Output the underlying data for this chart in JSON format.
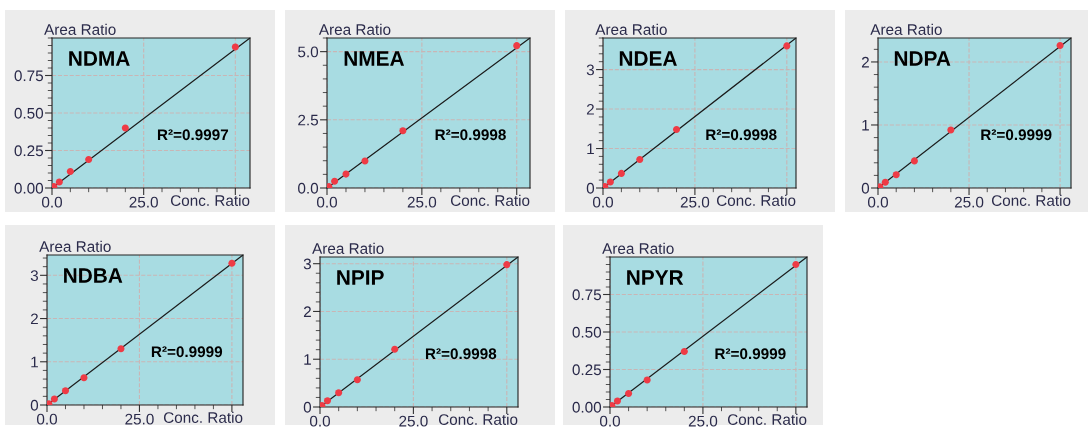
{
  "chart_data": [
    {
      "type": "scatter",
      "title": "NDMA",
      "xlabel": "Conc. Ratio",
      "ylabel": "Area Ratio",
      "annotations": [
        "R²=0.9997"
      ],
      "grid": true,
      "marker": "circle",
      "x": [
        0.5,
        2,
        5,
        10,
        20,
        50
      ],
      "series": [
        {
          "color": "#ee3b45",
          "values": [
            0.01,
            0.04,
            0.11,
            0.19,
            0.4,
            0.94
          ]
        },
        {
          "type": "line",
          "marker": "none",
          "color": "#1a1a1a",
          "x": [
            0,
            54
          ],
          "values": [
            0,
            1.0
          ]
        }
      ],
      "xlim": [
        0,
        54
      ],
      "ylim": [
        0,
        1.0
      ],
      "xticks": [
        {
          "value": 0,
          "label": "0.0"
        },
        {
          "value": 25,
          "label": "25.0"
        },
        {
          "value": 50,
          "label": null
        }
      ],
      "yticks": [
        {
          "value": 0,
          "label": "0.00"
        },
        {
          "value": 0.25,
          "label": "0.25"
        },
        {
          "value": 0.5,
          "label": "0.50"
        },
        {
          "value": 0.75,
          "label": "0.75"
        }
      ]
    },
    {
      "type": "scatter",
      "title": "NMEA",
      "xlabel": "Conc. Ratio",
      "ylabel": "Area Ratio",
      "annotations": [
        "R²=0.9998"
      ],
      "grid": true,
      "marker": "circle",
      "x": [
        0.5,
        2,
        5,
        10,
        20,
        50
      ],
      "series": [
        {
          "color": "#ee3b45",
          "values": [
            0.05,
            0.25,
            0.51,
            0.99,
            2.1,
            5.22
          ]
        },
        {
          "type": "line",
          "marker": "none",
          "color": "#1a1a1a",
          "x": [
            0,
            53.5
          ],
          "values": [
            0,
            5.5
          ]
        }
      ],
      "xlim": [
        0,
        53.5
      ],
      "ylim": [
        0,
        5.5
      ],
      "xticks": [
        {
          "value": 0,
          "label": "0.0"
        },
        {
          "value": 25,
          "label": "25.0"
        },
        {
          "value": 50,
          "label": null
        }
      ],
      "yticks": [
        {
          "value": 0,
          "label": "0.0"
        },
        {
          "value": 2.5,
          "label": "2.5"
        },
        {
          "value": 5,
          "label": "5.0"
        }
      ]
    },
    {
      "type": "scatter",
      "title": "NDEA",
      "xlabel": "Conc. Ratio",
      "ylabel": "Area Ratio",
      "annotations": [
        "R²=0.9998"
      ],
      "grid": true,
      "marker": "circle",
      "x": [
        0.5,
        2,
        5,
        10,
        20,
        50
      ],
      "series": [
        {
          "color": "#ee3b45",
          "values": [
            0.04,
            0.15,
            0.37,
            0.72,
            1.48,
            3.6
          ]
        },
        {
          "type": "line",
          "marker": "none",
          "color": "#1a1a1a",
          "x": [
            0,
            52.5
          ],
          "values": [
            0,
            3.8
          ]
        }
      ],
      "xlim": [
        0,
        52.5
      ],
      "ylim": [
        0,
        3.8
      ],
      "xticks": [
        {
          "value": 0,
          "label": "0.0"
        },
        {
          "value": 25,
          "label": "25.0"
        },
        {
          "value": 50,
          "label": null
        }
      ],
      "yticks": [
        0,
        1,
        2,
        3
      ]
    },
    {
      "type": "scatter",
      "title": "NDPA",
      "xlabel": "Conc. Ratio",
      "ylabel": "Area Ratio",
      "annotations": [
        "R²=0.9999"
      ],
      "grid": true,
      "marker": "circle",
      "x": [
        0.5,
        2,
        5,
        10,
        20,
        50
      ],
      "series": [
        {
          "color": "#ee3b45",
          "values": [
            0.02,
            0.09,
            0.21,
            0.43,
            0.92,
            2.26
          ]
        },
        {
          "type": "line",
          "marker": "none",
          "color": "#1a1a1a",
          "x": [
            0,
            53
          ],
          "values": [
            0,
            2.38
          ]
        }
      ],
      "xlim": [
        0,
        53
      ],
      "ylim": [
        0,
        2.38
      ],
      "xticks": [
        {
          "value": 0,
          "label": "0.0"
        },
        {
          "value": 25,
          "label": "25.0"
        },
        {
          "value": 50,
          "label": null
        }
      ],
      "yticks": [
        0,
        1,
        2
      ]
    },
    {
      "type": "scatter",
      "title": "NDBA",
      "xlabel": "Conc. Ratio",
      "ylabel": "Area Ratio",
      "annotations": [
        "R²=0.9999"
      ],
      "grid": true,
      "marker": "circle",
      "x": [
        0.5,
        2,
        5,
        10,
        20,
        50
      ],
      "series": [
        {
          "color": "#ee3b45",
          "values": [
            0.03,
            0.14,
            0.33,
            0.63,
            1.3,
            3.28
          ]
        },
        {
          "type": "line",
          "marker": "none",
          "color": "#1a1a1a",
          "x": [
            0,
            53
          ],
          "values": [
            0,
            3.47
          ]
        }
      ],
      "xlim": [
        0,
        53
      ],
      "ylim": [
        0,
        3.47
      ],
      "xticks": [
        {
          "value": 0,
          "label": "0.0"
        },
        {
          "value": 25,
          "label": "25.0"
        },
        {
          "value": 50,
          "label": null
        }
      ],
      "yticks": [
        0,
        1,
        2,
        3
      ]
    },
    {
      "type": "scatter",
      "title": "NPIP",
      "xlabel": "Conc. Ratio",
      "ylabel": "Area Ratio",
      "annotations": [
        "R²=0.9998"
      ],
      "grid": true,
      "marker": "circle",
      "x": [
        0.5,
        2,
        5,
        10,
        20,
        50
      ],
      "series": [
        {
          "color": "#ee3b45",
          "values": [
            0.03,
            0.13,
            0.3,
            0.57,
            1.21,
            2.98
          ]
        },
        {
          "type": "line",
          "marker": "none",
          "color": "#1a1a1a",
          "x": [
            0,
            53
          ],
          "values": [
            0,
            3.14
          ]
        }
      ],
      "xlim": [
        0,
        53
      ],
      "ylim": [
        0,
        3.14
      ],
      "xticks": [
        {
          "value": 0,
          "label": "0.0"
        },
        {
          "value": 25,
          "label": "25.0"
        },
        {
          "value": 50,
          "label": null
        }
      ],
      "yticks": [
        0,
        1,
        2,
        3
      ]
    },
    {
      "type": "scatter",
      "title": "NPYR",
      "xlabel": "Conc. Ratio",
      "ylabel": "Area Ratio",
      "annotations": [
        "R²=0.9999"
      ],
      "grid": true,
      "marker": "circle",
      "x": [
        0.5,
        2,
        5,
        10,
        20,
        50
      ],
      "series": [
        {
          "color": "#ee3b45",
          "values": [
            0.01,
            0.04,
            0.09,
            0.18,
            0.37,
            0.95
          ]
        },
        {
          "type": "line",
          "marker": "none",
          "color": "#1a1a1a",
          "x": [
            0,
            53
          ],
          "values": [
            0,
            1.0
          ]
        }
      ],
      "xlim": [
        0,
        53
      ],
      "ylim": [
        0,
        1.0
      ],
      "xticks": [
        {
          "value": 0,
          "label": "0.0"
        },
        {
          "value": 25,
          "label": "25.0"
        },
        {
          "value": 50,
          "label": null
        }
      ],
      "yticks": [
        {
          "value": 0,
          "label": "0.00"
        },
        {
          "value": 0.25,
          "label": "0.25"
        },
        {
          "value": 0.5,
          "label": "0.50"
        },
        {
          "value": 0.75,
          "label": "0.75"
        }
      ]
    }
  ]
}
